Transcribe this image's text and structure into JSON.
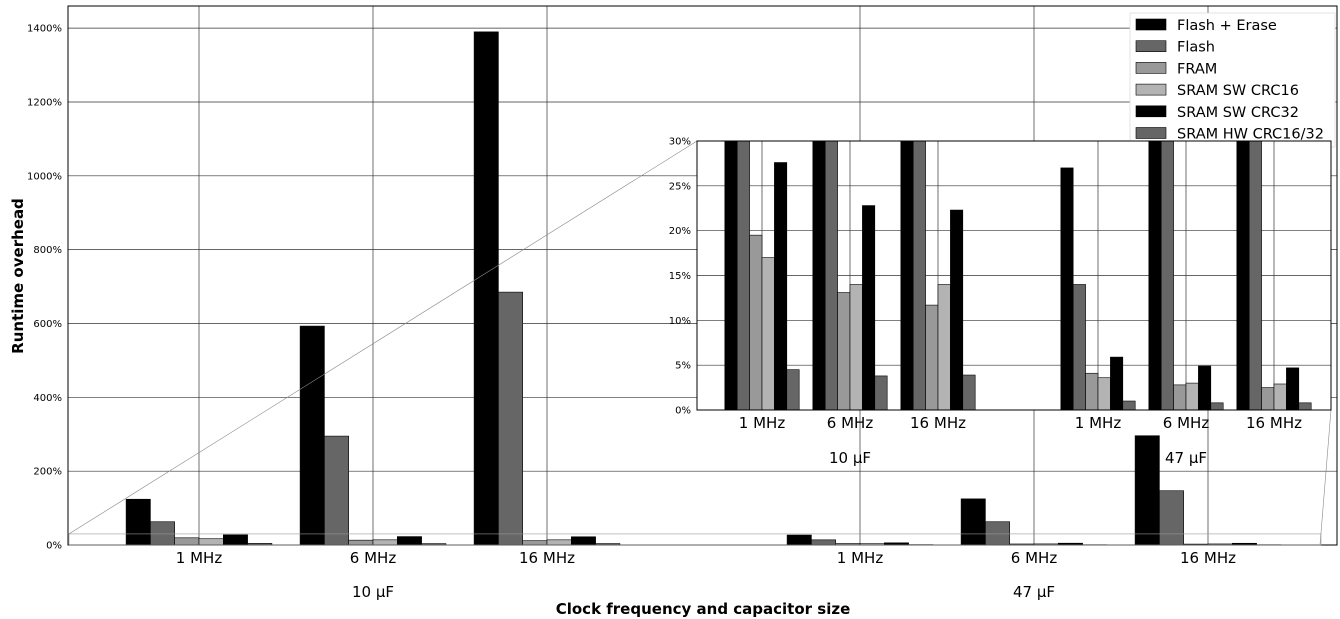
{
  "chart_data": {
    "type": "bar",
    "xlabel": "Clock frequency and capacitor size",
    "ylabel": "Runtime overhead",
    "ylim": [
      0,
      1460
    ],
    "yticks": [
      0,
      200,
      400,
      600,
      800,
      1000,
      1200,
      1400
    ],
    "ytick_labels": [
      "0%",
      "200%",
      "400%",
      "600%",
      "800%",
      "1000%",
      "1200%",
      "1400%"
    ],
    "grid": true,
    "legend_position": "top-right",
    "groups": [
      {
        "label": "10 µF",
        "categories": [
          "1 MHz",
          "6 MHz",
          "16 MHz"
        ]
      },
      {
        "label": "47 µF",
        "categories": [
          "1 MHz",
          "6 MHz",
          "16 MHz"
        ]
      }
    ],
    "series": [
      {
        "name": "Flash + Erase",
        "color": "#000000",
        "values": [
          124,
          593,
          1390,
          27,
          125,
          296
        ]
      },
      {
        "name": "Flash",
        "color": "#666666",
        "values": [
          63,
          295,
          685,
          14,
          63,
          147
        ]
      },
      {
        "name": "FRAM",
        "color": "#999999",
        "values": [
          19.5,
          13.1,
          11.7,
          4.1,
          2.8,
          2.5
        ]
      },
      {
        "name": "SRAM SW CRC16",
        "color": "#b3b3b3",
        "values": [
          17,
          14,
          14,
          3.6,
          3.0,
          2.9
        ]
      },
      {
        "name": "SRAM SW CRC32",
        "color": "#000000",
        "values": [
          27.6,
          22.8,
          22.3,
          5.9,
          4.9,
          4.7
        ]
      },
      {
        "name": "SRAM HW CRC16/32",
        "color": "#666666",
        "values": [
          4.5,
          3.8,
          3.9,
          1.0,
          0.8,
          0.8
        ]
      }
    ],
    "inset": {
      "ylim": [
        0,
        30
      ],
      "yticks": [
        0,
        5,
        10,
        15,
        20,
        25,
        30
      ],
      "ytick_labels": [
        "0%",
        "5%",
        "10%",
        "15%",
        "20%",
        "25%",
        "30%"
      ]
    }
  }
}
